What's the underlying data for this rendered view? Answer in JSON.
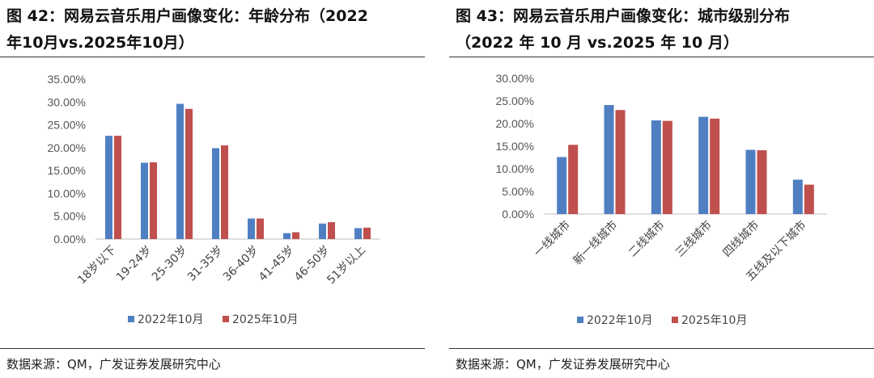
{
  "colors": {
    "series_2022": "#4f7fc1",
    "series_2025": "#c0504d",
    "axis": "#bfbfbf"
  },
  "left": {
    "title_line1": "图 42：网易云音乐用户画像变化：年龄分布（2022",
    "title_line2": "年10月vs.2025年10月）",
    "source": "数据来源：QM，广发证券发展研究中心"
  },
  "right": {
    "title_line1": "图 43：网易云音乐用户画像变化：城市级别分布",
    "title_line2": "（2022 年 10 月 vs.2025 年 10 月）",
    "source": "数据来源：QM，广发证券发展研究中心"
  },
  "chart_data": [
    {
      "type": "bar",
      "categories": [
        "18岁以下",
        "19-24岁",
        "25-30岁",
        "31-35岁",
        "36-40岁",
        "41-45岁",
        "46-50岁",
        "51岁以上"
      ],
      "series": [
        {
          "name": "2022年10月",
          "values": [
            22.6,
            16.7,
            29.6,
            19.9,
            4.5,
            1.3,
            3.4,
            2.4
          ]
        },
        {
          "name": "2025年10月",
          "values": [
            22.6,
            16.8,
            28.5,
            20.5,
            4.5,
            1.5,
            3.7,
            2.5
          ]
        }
      ],
      "ylim": [
        0,
        35
      ],
      "yticks": [
        "0.00%",
        "5.00%",
        "10.00%",
        "15.00%",
        "20.00%",
        "25.00%",
        "30.00%",
        "35.00%"
      ],
      "legend_position": "bottom"
    },
    {
      "type": "bar",
      "categories": [
        "一线城市",
        "新一线城市",
        "二线城市",
        "三线城市",
        "四线城市",
        "五线及以下城市"
      ],
      "series": [
        {
          "name": "2022年10月",
          "values": [
            12.6,
            24.1,
            20.7,
            21.5,
            14.2,
            7.6
          ]
        },
        {
          "name": "2025年10月",
          "values": [
            15.3,
            23.0,
            20.6,
            21.1,
            14.1,
            6.5
          ]
        }
      ],
      "ylim": [
        0,
        30
      ],
      "yticks": [
        "0.00%",
        "5.00%",
        "10.00%",
        "15.00%",
        "20.00%",
        "25.00%",
        "30.00%"
      ],
      "legend_position": "bottom"
    }
  ]
}
